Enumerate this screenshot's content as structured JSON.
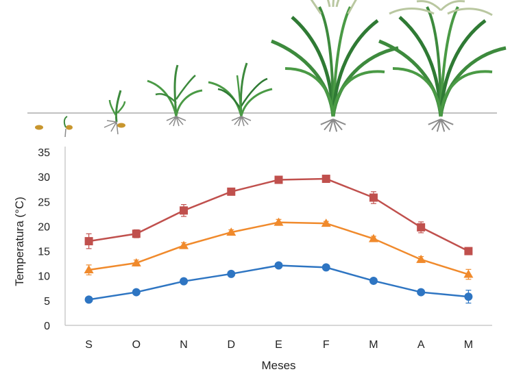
{
  "chart_data": {
    "type": "line",
    "categories": [
      "S",
      "O",
      "N",
      "D",
      "E",
      "F",
      "M",
      "A",
      "M"
    ],
    "xlabel": "Meses",
    "ylabel": "Temperatura (°C)",
    "ylim": [
      0,
      35
    ],
    "yticks": [
      0,
      5,
      10,
      15,
      20,
      25,
      30,
      35
    ],
    "grid": false,
    "legend": "none",
    "series": [
      {
        "color": "#c0504d",
        "marker": "square",
        "values": [
          17.0,
          18.5,
          23.2,
          27.0,
          29.4,
          29.6,
          25.8,
          19.8,
          15.0
        ],
        "errors": [
          1.5,
          0.8,
          1.2,
          0.5,
          0.6,
          0.4,
          1.2,
          1.1,
          0.7
        ]
      },
      {
        "color": "#f08a2c",
        "marker": "triangle",
        "values": [
          11.2,
          12.6,
          16.1,
          18.8,
          20.8,
          20.6,
          17.5,
          13.3,
          10.3
        ],
        "errors": [
          1.0,
          0.6,
          0.6,
          0.5,
          0.6,
          0.4,
          0.5,
          0.6,
          1.0
        ]
      },
      {
        "color": "#2e75c2",
        "marker": "circle",
        "values": [
          5.2,
          6.7,
          8.9,
          10.4,
          12.1,
          11.7,
          9.0,
          6.7,
          5.8
        ],
        "errors": [
          0.4,
          0.4,
          0.4,
          0.4,
          0.5,
          0.4,
          0.5,
          0.5,
          1.3
        ]
      }
    ]
  },
  "illustration": {
    "stages": [
      "seed-icon",
      "germinating-seed-icon",
      "seedling-icon",
      "tillering-plant-icon",
      "tillering-plant-icon",
      "flowering-plant-icon",
      "mature-plant-icon"
    ],
    "leaf_color": "#3d8a3d",
    "panicle_color": "#b9c7a0",
    "seed_color": "#c8962e",
    "root_color": "#8a8a8a"
  }
}
